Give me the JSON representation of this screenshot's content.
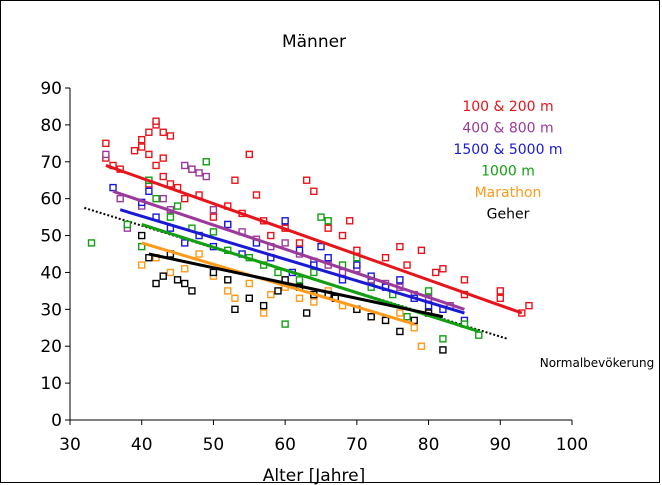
{
  "chart_data": {
    "type": "scatter",
    "title": "Männer",
    "xlabel": "Alter [Jahre]",
    "ylabel": "",
    "xlim": [
      30,
      100
    ],
    "ylim": [
      0,
      90
    ],
    "xticks": [
      30,
      40,
      50,
      60,
      70,
      80,
      90,
      100
    ],
    "yticks": [
      0,
      10,
      20,
      30,
      40,
      50,
      60,
      70,
      80,
      90
    ],
    "grid": false,
    "legend_position": "top-right",
    "annotation": "Normalbevökerung",
    "reference_line": {
      "label": "Normalbevökerung",
      "color": "#000000",
      "style": "dotted",
      "x": [
        32,
        91
      ],
      "y": [
        57.5,
        22
      ]
    },
    "series": [
      {
        "name": "100 & 200 m",
        "color": "#e8141b",
        "points": [
          [
            35,
            75
          ],
          [
            35,
            71
          ],
          [
            36,
            69
          ],
          [
            37,
            68
          ],
          [
            39,
            73
          ],
          [
            40,
            76
          ],
          [
            40,
            74
          ],
          [
            41,
            78
          ],
          [
            41,
            72
          ],
          [
            41,
            64
          ],
          [
            42,
            80
          ],
          [
            42,
            81
          ],
          [
            42,
            69
          ],
          [
            43,
            78
          ],
          [
            43,
            71
          ],
          [
            43,
            66
          ],
          [
            44,
            77
          ],
          [
            44,
            64
          ],
          [
            45,
            63
          ],
          [
            46,
            60
          ],
          [
            47,
            68
          ],
          [
            48,
            61
          ],
          [
            50,
            55
          ],
          [
            52,
            58
          ],
          [
            53,
            65
          ],
          [
            54,
            56
          ],
          [
            55,
            72
          ],
          [
            56,
            61
          ],
          [
            57,
            54
          ],
          [
            58,
            50
          ],
          [
            60,
            52
          ],
          [
            62,
            48
          ],
          [
            63,
            65
          ],
          [
            64,
            62
          ],
          [
            66,
            52
          ],
          [
            68,
            50
          ],
          [
            69,
            54
          ],
          [
            70,
            46
          ],
          [
            72,
            38
          ],
          [
            74,
            44
          ],
          [
            76,
            47
          ],
          [
            77,
            42
          ],
          [
            79,
            46
          ],
          [
            81,
            40
          ],
          [
            82,
            41
          ],
          [
            85,
            38
          ],
          [
            85,
            34
          ],
          [
            90,
            35
          ],
          [
            90,
            33
          ],
          [
            93,
            29
          ],
          [
            94,
            31
          ]
        ],
        "trend": {
          "x": [
            35,
            93
          ],
          "y": [
            69,
            29
          ]
        }
      },
      {
        "name": "400 & 800 m",
        "color": "#9b3a9b",
        "points": [
          [
            35,
            72
          ],
          [
            37,
            60
          ],
          [
            38,
            52
          ],
          [
            40,
            58
          ],
          [
            41,
            65
          ],
          [
            43,
            60
          ],
          [
            44,
            57
          ],
          [
            46,
            69
          ],
          [
            47,
            68
          ],
          [
            48,
            67
          ],
          [
            49,
            66
          ],
          [
            50,
            57
          ],
          [
            52,
            53
          ],
          [
            54,
            51
          ],
          [
            56,
            49
          ],
          [
            58,
            47
          ],
          [
            60,
            48
          ],
          [
            62,
            45
          ],
          [
            64,
            43
          ],
          [
            66,
            42
          ],
          [
            68,
            40
          ],
          [
            70,
            41
          ],
          [
            72,
            38
          ],
          [
            74,
            37
          ],
          [
            76,
            36
          ],
          [
            78,
            34
          ],
          [
            80,
            33
          ],
          [
            83,
            31
          ]
        ],
        "trend": {
          "x": [
            36,
            85
          ],
          "y": [
            62,
            30
          ]
        }
      },
      {
        "name": "1500 & 5000 m",
        "color": "#1a1ad6",
        "points": [
          [
            36,
            63
          ],
          [
            40,
            59
          ],
          [
            41,
            62
          ],
          [
            42,
            55
          ],
          [
            44,
            52
          ],
          [
            46,
            48
          ],
          [
            48,
            50
          ],
          [
            50,
            47
          ],
          [
            52,
            53
          ],
          [
            54,
            45
          ],
          [
            56,
            48
          ],
          [
            58,
            44
          ],
          [
            60,
            54
          ],
          [
            61,
            40
          ],
          [
            62,
            46
          ],
          [
            64,
            42
          ],
          [
            65,
            47
          ],
          [
            66,
            44
          ],
          [
            68,
            38
          ],
          [
            70,
            42
          ],
          [
            72,
            39
          ],
          [
            74,
            36
          ],
          [
            76,
            38
          ],
          [
            78,
            33
          ],
          [
            80,
            31
          ],
          [
            82,
            30
          ],
          [
            85,
            27
          ]
        ],
        "trend": {
          "x": [
            37,
            85
          ],
          "y": [
            57,
            29
          ]
        }
      },
      {
        "name": "1000 m",
        "color": "#12a012",
        "points": [
          [
            33,
            48
          ],
          [
            38,
            53
          ],
          [
            40,
            47
          ],
          [
            41,
            65
          ],
          [
            42,
            60
          ],
          [
            44,
            55
          ],
          [
            45,
            58
          ],
          [
            47,
            52
          ],
          [
            49,
            70
          ],
          [
            50,
            51
          ],
          [
            52,
            46
          ],
          [
            55,
            44
          ],
          [
            57,
            42
          ],
          [
            59,
            40
          ],
          [
            60,
            26
          ],
          [
            62,
            38
          ],
          [
            64,
            40
          ],
          [
            65,
            55
          ],
          [
            66,
            54
          ],
          [
            68,
            42
          ],
          [
            70,
            44
          ],
          [
            72,
            36
          ],
          [
            75,
            34
          ],
          [
            77,
            28
          ],
          [
            80,
            35
          ],
          [
            82,
            22
          ],
          [
            85,
            26
          ],
          [
            87,
            23
          ]
        ],
        "trend": {
          "x": [
            40,
            87
          ],
          "y": [
            53,
            24
          ]
        }
      },
      {
        "name": "Marathon",
        "color": "#ff9a1a",
        "points": [
          [
            40,
            42
          ],
          [
            42,
            44
          ],
          [
            44,
            40
          ],
          [
            46,
            41
          ],
          [
            48,
            45
          ],
          [
            50,
            39
          ],
          [
            52,
            35
          ],
          [
            53,
            33
          ],
          [
            55,
            37
          ],
          [
            57,
            29
          ],
          [
            58,
            34
          ],
          [
            60,
            36
          ],
          [
            62,
            33
          ],
          [
            64,
            32
          ],
          [
            66,
            35
          ],
          [
            68,
            31
          ],
          [
            70,
            30
          ],
          [
            72,
            28
          ],
          [
            74,
            27
          ],
          [
            76,
            29
          ],
          [
            78,
            25
          ],
          [
            79,
            20
          ]
        ],
        "trend": {
          "x": [
            40,
            78
          ],
          "y": [
            48,
            26
          ]
        }
      },
      {
        "name": "Geher",
        "color": "#000000",
        "points": [
          [
            40,
            50
          ],
          [
            41,
            44
          ],
          [
            42,
            37
          ],
          [
            43,
            39
          ],
          [
            44,
            45
          ],
          [
            45,
            38
          ],
          [
            46,
            37
          ],
          [
            47,
            35
          ],
          [
            50,
            40
          ],
          [
            52,
            38
          ],
          [
            53,
            30
          ],
          [
            55,
            33
          ],
          [
            57,
            31
          ],
          [
            59,
            35
          ],
          [
            60,
            38
          ],
          [
            62,
            36
          ],
          [
            63,
            29
          ],
          [
            64,
            34
          ],
          [
            66,
            34
          ],
          [
            67,
            33
          ],
          [
            70,
            30
          ],
          [
            72,
            28
          ],
          [
            74,
            27
          ],
          [
            76,
            24
          ],
          [
            78,
            27
          ],
          [
            80,
            29
          ],
          [
            82,
            19
          ]
        ],
        "trend": {
          "x": [
            41,
            82
          ],
          "y": [
            45,
            28
          ]
        }
      }
    ]
  }
}
